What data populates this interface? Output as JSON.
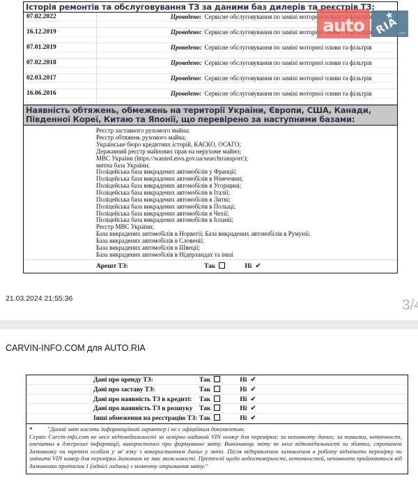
{
  "service_history": {
    "title": "Історія ремонтів та обслуговування ТЗ за даними баз дилерів та реєстрів ТЗ:",
    "performed_label": "Проведено:",
    "entries": [
      {
        "date": "07.02.2022",
        "description": "Сервісне обслуговування по заміні моторної оливи та фільтрів"
      },
      {
        "date": "16.12.2019",
        "description": "Сервісне обслуговування по заміні моторної оливи та фільтрів"
      },
      {
        "date": "07.01.2019",
        "description": "Сервісне обслуговування по заміні моторної оливи та фільтрів"
      },
      {
        "date": "07.02.2018",
        "description": "Сервісне обслуговування по заміні моторної оливи та фільтрів"
      },
      {
        "date": "02.03.2017",
        "description": "Сервісне обслуговування по заміні моторної оливи та фільтрів"
      },
      {
        "date": "16.06.2016",
        "description": "Сервісне обслуговування по заміні моторної оливи та фільтрів"
      }
    ]
  },
  "encumbrances": {
    "title": "Наявність обтяжень, обмежень на території України, Європи, США, Канади, Південної Кореї, Китаю та Японії, що перевірено за наступними базами:",
    "databases": [
      "Реєстр заставного рухомого майна;",
      "Реєстр обтяжень рухомого майна;",
      "Українське бюро кредитних історій, КАСКО, ОСАГО;",
      "Державний реєстр майнових прав на нерухоме майно;",
      "МВС України (https://wanted.mvs.gov.ua/searchtransport/);",
      "митна база України;",
      "Поліцейська база викрадених автомобілів у Франції;",
      "Поліцейська база викрадених автомобілів в Німеччині;",
      "Поліцейська база викрадених автомобілів в Угорщині;",
      "Поліцейська база викрадених автомобілів в Італії;",
      "Поліцейська база викрадених автомобілів в Литві;",
      "Поліцейська база викрадених автомобілів в Польщі;",
      "Поліцейська база викрадених автомобілів в Чехії;",
      "Поліцейська база викрадених автомобілів в Іспанії;",
      "Реєстр МВС України;",
      "База викрадених автомобілів в Норвегії; База викрадених автомобілів в Румунії;",
      "База викрадених автомобілів в Словенії;",
      "База викрадених автомобілів в Швеції;",
      "База викрадених автомобілів в Нідерландах  та інші"
    ],
    "arrest_label": "Арешт ТЗ:"
  },
  "checks": {
    "yes_label": "Так",
    "no_label": "Ні",
    "check_glyph": "✔",
    "rows": [
      "Дані про оренду ТЗ:",
      "Дані про заставу ТЗ:",
      "Дані про наявність ТЗ в кредиті:",
      "Дані про наявність ТЗ в розшуку",
      "Інші обмеження на реєстрацію ТЗ:"
    ]
  },
  "footer_meta": {
    "timestamp": "21.03.2024 21:55:36",
    "page": "3/4"
  },
  "provider_title": "CARVIN-INFO.COM  для AUTO.RIA",
  "watermark": {
    "auto_label": "auto",
    "ria_label": "RIA",
    "star_glyph": "★",
    "dot_com": ".com",
    "red_color": "#e85b54",
    "blue_color": "#557991"
  },
  "disclaimer": {
    "marker": "*",
    "line1": "\"Даний звіт носить інформаційний характер і не є офіційним документом.",
    "body": "Сервіс Carvin-info.com не несе відповідальності за невірно наданий VIN номер для перевірки; за неповноту даних; за помилки, неточності, опечатки в джерелах інформації, використаних при формуванні звіту. Виконавець звіту не несе відповідальності за збитки, спричинені Замовнику чи третім особам у зв' язку з використанням даних у звіті. Після відправлення замовлення в роботу відмінити перевірку чи змінити VIN номер для перевірки Замовник не має можливості. Претензії щодо недостовірності, неточностей, неповноти  приймаються від Замовника протягом 1 (однієї години) з моменту отримання звіту.\""
  }
}
